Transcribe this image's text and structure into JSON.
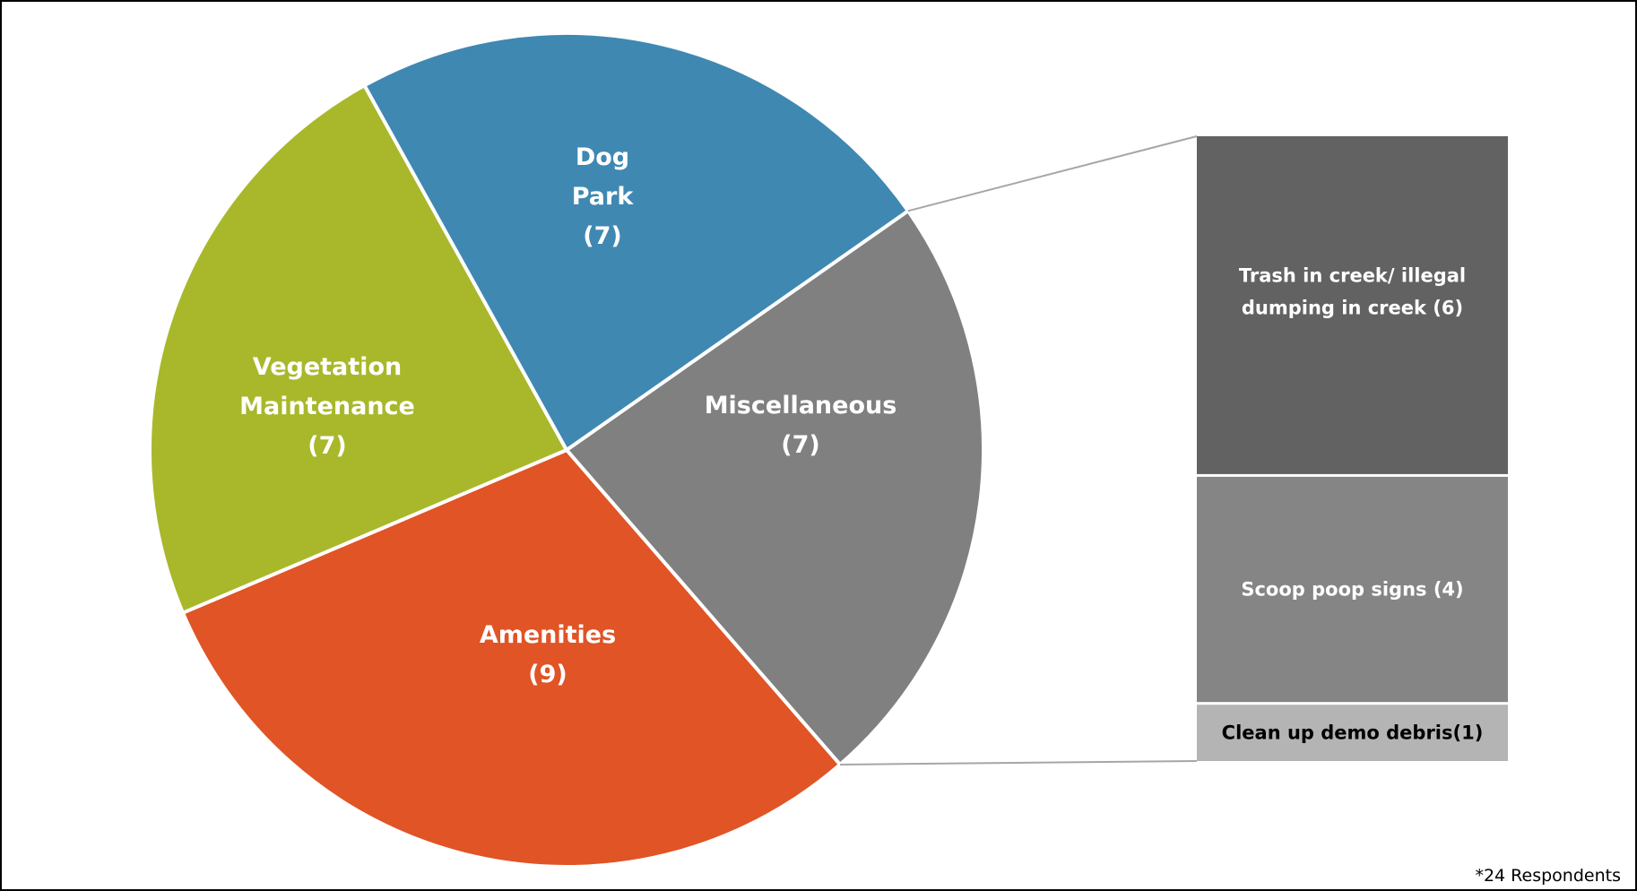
{
  "chart_data": {
    "type": "pie",
    "subtype": "bar-of-pie",
    "slices": [
      {
        "label": "Dog Park",
        "value": 7,
        "value_label": "(7)",
        "color": "#3F88B2"
      },
      {
        "label": "Miscellaneous",
        "value": 7,
        "value_label": "(7)",
        "color": "#808080"
      },
      {
        "label": "Amenities",
        "value": 9,
        "value_label": "(9)",
        "color": "#E05426"
      },
      {
        "label": "Vegetation Maintenance",
        "value": 7,
        "value_label": "(7)",
        "color": "#A8B82A"
      }
    ],
    "breakdown_of": "Miscellaneous",
    "breakdown": [
      {
        "label": "Trash in creek/ illegal dumping in creek (6)",
        "value": 6,
        "color": "#626262"
      },
      {
        "label": "Scoop poop signs (4)",
        "value": 4,
        "color": "#858585"
      },
      {
        "label": "Clean up demo debris(1)",
        "value": 1,
        "color": "#B4B4B4"
      }
    ],
    "footnote": "*24 Respondents"
  }
}
